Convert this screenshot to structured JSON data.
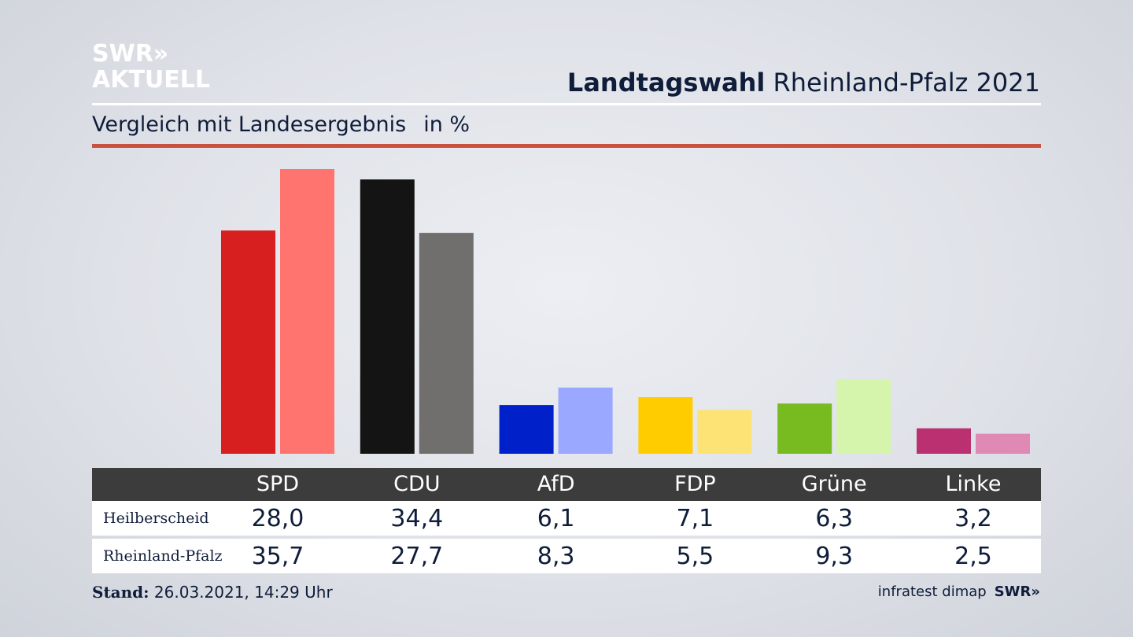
{
  "logo": {
    "line1": "SWR»",
    "line2": "AKTUELL"
  },
  "header": {
    "title_bold": "Landtagswahl",
    "title_rest": "Rheinland-Pfalz 2021"
  },
  "subheader": {
    "text": "Vergleich mit Landesergebnis",
    "unit": "in %"
  },
  "colors": {
    "SPD": [
      "#d71f20",
      "#ff746e"
    ],
    "CDU": [
      "#141414",
      "#706f6e"
    ],
    "AfD": [
      "#0021c9",
      "#9aa8ff"
    ],
    "FDP": [
      "#ffcc00",
      "#fde375"
    ],
    "Grüne": [
      "#77bb21",
      "#d5f5ac"
    ],
    "Linke": [
      "#bb3070",
      "#e089b4"
    ]
  },
  "chart_data": {
    "type": "bar",
    "categories": [
      "SPD",
      "CDU",
      "AfD",
      "FDP",
      "Grüne",
      "Linke"
    ],
    "series": [
      {
        "name": "Heilberscheid",
        "values": [
          28.0,
          34.4,
          6.1,
          7.1,
          6.3,
          3.2
        ]
      },
      {
        "name": "Rheinland-Pfalz",
        "values": [
          35.7,
          27.7,
          8.3,
          5.5,
          9.3,
          2.5
        ]
      }
    ],
    "ylabel": "in %"
  },
  "table": {
    "headers": [
      "SPD",
      "CDU",
      "AfD",
      "FDP",
      "Grüne",
      "Linke"
    ],
    "rows": [
      {
        "label": "Heilberscheid",
        "values": [
          "28,0",
          "34,4",
          "6,1",
          "7,1",
          "6,3",
          "3,2"
        ]
      },
      {
        "label": "Rheinland-Pfalz",
        "values": [
          "35,7",
          "27,7",
          "8,3",
          "5,5",
          "9,3",
          "2,5"
        ]
      }
    ]
  },
  "footer": {
    "stand_label": "Stand:",
    "stand_value": "26.03.2021, 14:29 Uhr",
    "source": "infratest dimap",
    "brand": "SWR»"
  }
}
